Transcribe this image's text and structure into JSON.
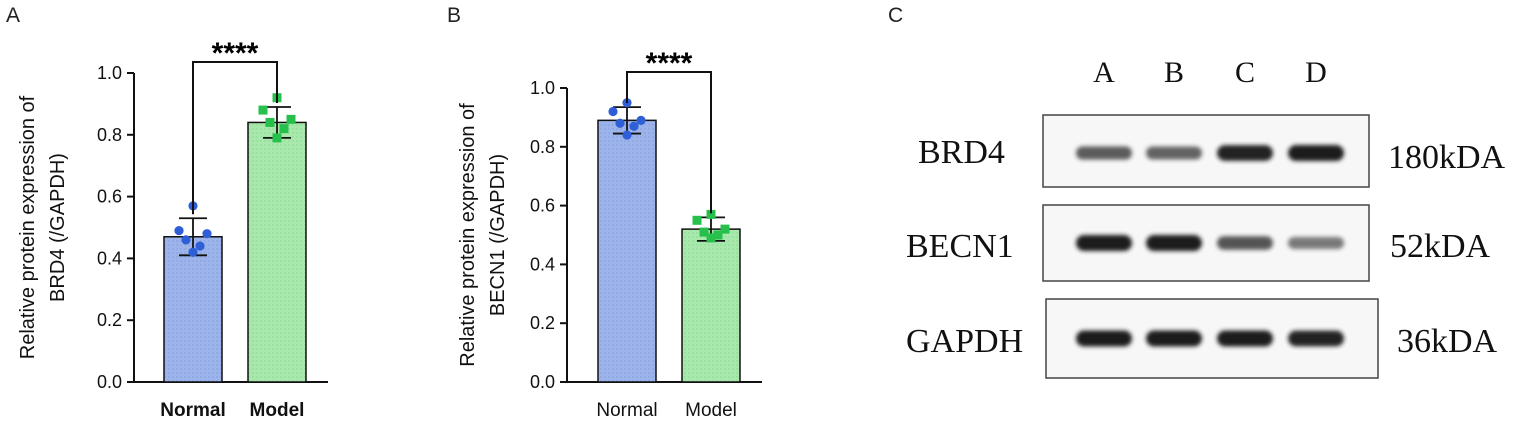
{
  "colors": {
    "normal_fill": "#9db4ea",
    "normal_point": "#2e5fd6",
    "model_fill": "#a9e8ad",
    "model_point": "#27c04c",
    "axis": "#111111",
    "band": "#1c1c1c"
  },
  "chart_data": [
    {
      "type": "bar",
      "panel": "A",
      "ylabel_lines": [
        "Relative protein expression of",
        "BRD4 (/GAPDH)"
      ],
      "ylim": [
        0,
        1.0
      ],
      "yticks": [
        0.0,
        0.2,
        0.4,
        0.6,
        0.8,
        1.0
      ],
      "tick_labels": [
        "0.0",
        "0.2",
        "0.4",
        "0.6",
        "0.8",
        "1.0"
      ],
      "categories": [
        "Normal",
        "Model"
      ],
      "values": [
        0.47,
        0.84
      ],
      "errors": [
        0.06,
        0.05
      ],
      "points": [
        [
          0.57,
          0.49,
          0.48,
          0.46,
          0.44,
          0.42
        ],
        [
          0.92,
          0.88,
          0.85,
          0.84,
          0.82,
          0.79
        ]
      ],
      "significance": "****",
      "grid": false
    },
    {
      "type": "bar",
      "panel": "B",
      "ylabel_lines": [
        "Relative protein expression of",
        "BECN1 (/GAPDH)"
      ],
      "ylim": [
        0,
        1.0
      ],
      "yticks": [
        0.0,
        0.2,
        0.4,
        0.6,
        0.8,
        1.0
      ],
      "tick_labels": [
        "0.0",
        "0.2",
        "0.4",
        "0.6",
        "0.8",
        "1.0"
      ],
      "categories": [
        "Normal",
        "Model"
      ],
      "values": [
        0.89,
        0.52
      ],
      "errors": [
        0.045,
        0.04
      ],
      "points": [
        [
          0.95,
          0.92,
          0.89,
          0.88,
          0.87,
          0.84
        ],
        [
          0.57,
          0.55,
          0.52,
          0.51,
          0.5,
          0.49
        ]
      ],
      "significance": "****",
      "grid": false
    }
  ],
  "western_blot": {
    "panel": "C",
    "lanes": [
      "A",
      "B",
      "C",
      "D"
    ],
    "rows": [
      {
        "protein": "BRD4",
        "size": "180kDA",
        "intensity": [
          0.55,
          0.5,
          0.95,
          1.0
        ]
      },
      {
        "protein": "BECN1",
        "size": "52kDA",
        "intensity": [
          1.0,
          1.0,
          0.6,
          0.35
        ]
      },
      {
        "protein": "GAPDH",
        "size": "36kDA",
        "intensity": [
          1.0,
          1.0,
          1.0,
          0.95
        ]
      }
    ]
  }
}
